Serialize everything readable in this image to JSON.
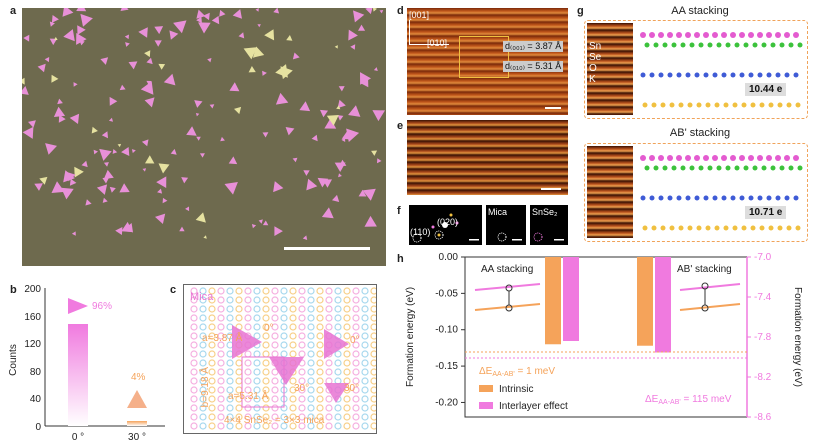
{
  "panels": {
    "a": "a",
    "b": "b",
    "c": "c",
    "d": "d",
    "e": "e",
    "f": "f",
    "g": "g",
    "h": "h"
  },
  "panel_b": {
    "y_label": "Counts",
    "y_ticks": [
      "200",
      "160",
      "120",
      "80",
      "40",
      "0"
    ],
    "x_ticks": [
      "0 °",
      "30 °"
    ],
    "annotations": [
      "96%",
      "4%"
    ]
  },
  "panel_c": {
    "mica_label": "Mica",
    "lattice_a": "a=3.87 Å",
    "lattice_b": "b=9.18 Å",
    "lattice_a2": "a=5.31 Å",
    "angle_0a": "0°",
    "angle_0b": "0°",
    "angle_30a": "30°",
    "angle_30b": "30°",
    "caption": "4×4 SnSe₂ = 3×3 mica"
  },
  "panel_d": {
    "dir_001": "[001]",
    "dir_010": "[010]",
    "d1": "d₍₀₀₁₎ = 3.87 Å",
    "d2": "d₍₀₁₀₎ = 5.31 Å"
  },
  "panel_f": {
    "spot_110": "(110)",
    "spot_020": "(020)",
    "mica": "Mica",
    "snse2": "SnSe₂"
  },
  "panel_g": {
    "aa_title": "AA stacking",
    "ab_title": "AB' stacking",
    "legend": [
      "Sn",
      "Se",
      "O",
      "K"
    ],
    "aa_charge": "10.44 e",
    "ab_charge": "10.71 e"
  },
  "chart_data": {
    "type": "bar",
    "categories": [
      "AA stacking",
      "AB' stacking"
    ],
    "series": [
      {
        "name": "Intrinsic",
        "values": [
          -0.12,
          -0.122
        ],
        "axis": "left",
        "color": "#f5a35a"
      },
      {
        "name": "Interlayer effect",
        "values": [
          -7.84,
          -7.955
        ],
        "axis": "right",
        "color": "#f07adf"
      }
    ],
    "ylabel_left": "Formation energy (eV)",
    "ylabel_right": "Formation energy (eV)",
    "ylim_left": [
      -0.22,
      0.0
    ],
    "ylim_right": [
      -8.6,
      -7.0
    ],
    "yticks_left": [
      "0.00",
      "-0.05",
      "-0.10",
      "-0.15",
      "-0.20"
    ],
    "yticks_right": [
      "-7.0",
      "-7.4",
      "-7.8",
      "-8.2",
      "-8.6"
    ],
    "delta_intrinsic": "ΔE",
    "delta_intrinsic_sub": "AA-AB'",
    "delta_intrinsic_val": " = 1 meV",
    "delta_interlayer": "ΔE",
    "delta_interlayer_sub": "AA-AB'",
    "delta_interlayer_val": " = 115 meV"
  },
  "colors": {
    "pink": "#f07adf",
    "orange": "#f5a35a",
    "olive": "#6e6a4e"
  }
}
